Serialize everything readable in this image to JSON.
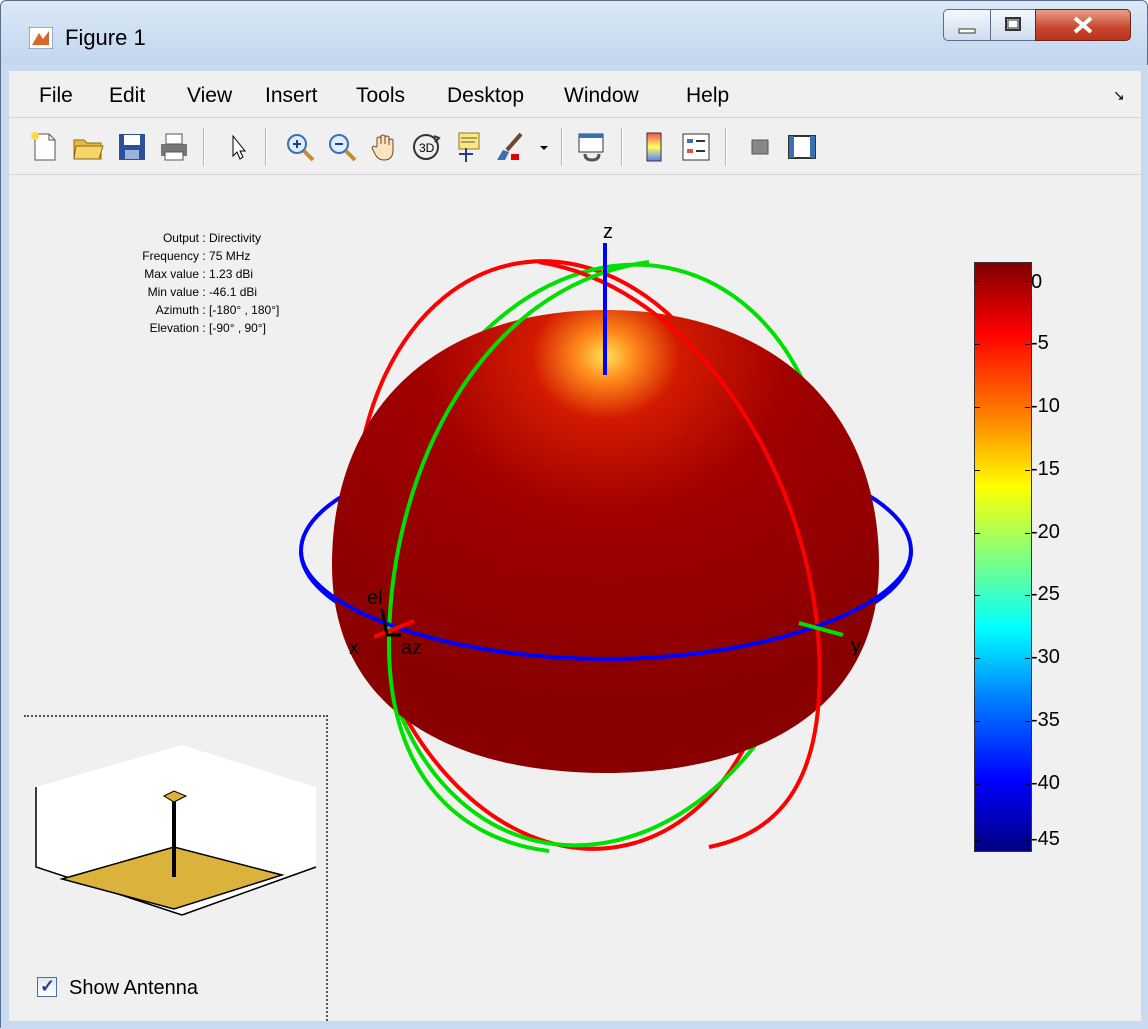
{
  "window": {
    "title": "Figure 1"
  },
  "menu": [
    "File",
    "Edit",
    "View",
    "Insert",
    "Tools",
    "Desktop",
    "Window",
    "Help"
  ],
  "toolbar": {
    "buttons": [
      "new-figure",
      "open-file",
      "save",
      "print",
      "edit-plot",
      "zoom-in",
      "zoom-out",
      "pan",
      "rotate-3d",
      "data-cursor",
      "brush",
      "link-plot",
      "insert-colorbar",
      "insert-legend",
      "hide-plot-tools",
      "show-plot-tools"
    ]
  },
  "info": {
    "rows": [
      {
        "key": "Output",
        "value": "Directivity"
      },
      {
        "key": "Frequency",
        "value": "75 MHz"
      },
      {
        "key": "Max value",
        "value": "1.23 dBi"
      },
      {
        "key": "Min value",
        "value": "-46.1 dBi"
      },
      {
        "key": "Azimuth",
        "value": "[-180° , 180°]"
      },
      {
        "key": "Elevation",
        "value": "[-90° , 90°]"
      }
    ]
  },
  "axes": {
    "z": "z",
    "x": "x",
    "y": "y",
    "el": "el",
    "az": "az"
  },
  "colorbar": {
    "ticks": [
      "0",
      "-5",
      "-10",
      "-15",
      "-20",
      "-25",
      "-30",
      "-35",
      "-40",
      "-45"
    ]
  },
  "antenna": {
    "show_label": "Show Antenna",
    "checked": true
  },
  "colors": {
    "pattern": "#9a0000",
    "ring_x": "#ff0000",
    "ring_y": "#00e000",
    "ring_z": "#0000ff",
    "ground": "#dab23c"
  }
}
